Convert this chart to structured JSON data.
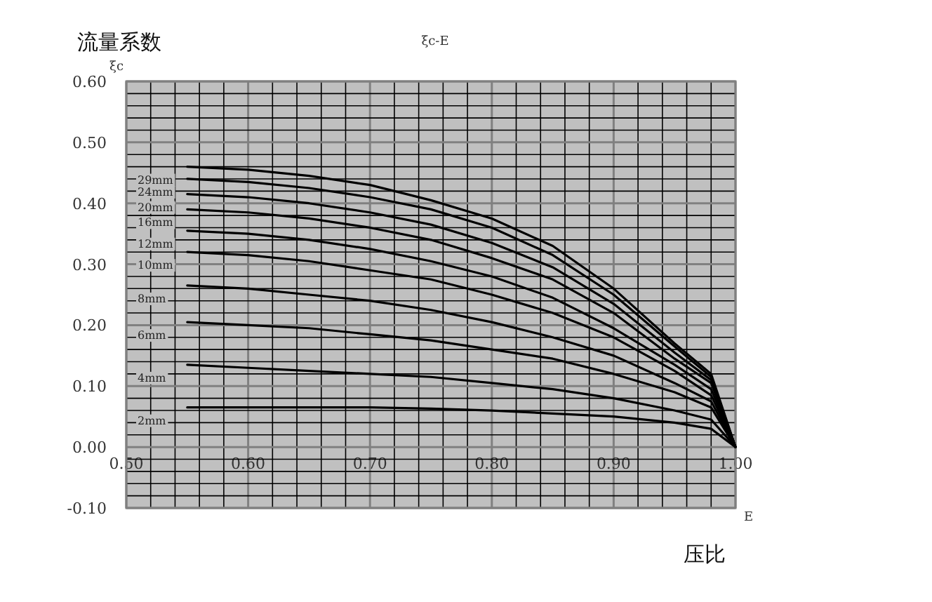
{
  "chart_data": {
    "type": "line",
    "title": "ξc-E",
    "xlabel": "压比",
    "ylabel": "流量系数",
    "annotations": [
      "ξc",
      "E"
    ],
    "x": [
      0.55,
      0.6,
      0.65,
      0.7,
      0.75,
      0.8,
      0.85,
      0.9,
      0.95,
      0.98,
      1.0
    ],
    "xlim": [
      0.5,
      1.0
    ],
    "ylim": [
      -0.1,
      0.6
    ],
    "xticks": [
      {
        "value": 0.5,
        "label": "0.50"
      },
      {
        "value": 0.52,
        "label": null
      },
      {
        "value": 0.54,
        "label": null
      },
      {
        "value": 0.56,
        "label": null
      },
      {
        "value": 0.58,
        "label": null
      },
      {
        "value": 0.6,
        "label": "0.60"
      },
      {
        "value": 0.62,
        "label": null
      },
      {
        "value": 0.64,
        "label": null
      },
      {
        "value": 0.66,
        "label": null
      },
      {
        "value": 0.68,
        "label": null
      },
      {
        "value": 0.7,
        "label": "0.70"
      },
      {
        "value": 0.72,
        "label": null
      },
      {
        "value": 0.74,
        "label": null
      },
      {
        "value": 0.76,
        "label": null
      },
      {
        "value": 0.78,
        "label": null
      },
      {
        "value": 0.8,
        "label": "0.80"
      },
      {
        "value": 0.82,
        "label": null
      },
      {
        "value": 0.84,
        "label": null
      },
      {
        "value": 0.86,
        "label": null
      },
      {
        "value": 0.88,
        "label": null
      },
      {
        "value": 0.9,
        "label": "0.90"
      },
      {
        "value": 0.92,
        "label": null
      },
      {
        "value": 0.94,
        "label": null
      },
      {
        "value": 0.96,
        "label": null
      },
      {
        "value": 0.98,
        "label": null
      },
      {
        "value": 1.0,
        "label": "1.00"
      }
    ],
    "yticks": [
      {
        "value": -0.1,
        "label": "-0.10"
      },
      {
        "value": -0.08,
        "label": null
      },
      {
        "value": -0.06,
        "label": null
      },
      {
        "value": -0.04,
        "label": null
      },
      {
        "value": -0.02,
        "label": null
      },
      {
        "value": 0,
        "label": "0.00"
      },
      {
        "value": 0.02,
        "label": null
      },
      {
        "value": 0.04,
        "label": null
      },
      {
        "value": 0.06,
        "label": null
      },
      {
        "value": 0.08,
        "label": null
      },
      {
        "value": 0.1,
        "label": "0.10"
      },
      {
        "value": 0.12,
        "label": null
      },
      {
        "value": 0.14,
        "label": null
      },
      {
        "value": 0.16,
        "label": null
      },
      {
        "value": 0.18,
        "label": null
      },
      {
        "value": 0.2,
        "label": "0.20"
      },
      {
        "value": 0.22,
        "label": null
      },
      {
        "value": 0.24,
        "label": null
      },
      {
        "value": 0.26,
        "label": null
      },
      {
        "value": 0.28,
        "label": null
      },
      {
        "value": 0.3,
        "label": "0.30"
      },
      {
        "value": 0.32,
        "label": null
      },
      {
        "value": 0.34,
        "label": null
      },
      {
        "value": 0.36,
        "label": null
      },
      {
        "value": 0.38,
        "label": null
      },
      {
        "value": 0.4,
        "label": "0.40"
      },
      {
        "value": 0.42,
        "label": null
      },
      {
        "value": 0.44,
        "label": null
      },
      {
        "value": 0.46,
        "label": null
      },
      {
        "value": 0.48,
        "label": null
      },
      {
        "value": 0.5,
        "label": "0.50"
      },
      {
        "value": 0.52,
        "label": null
      },
      {
        "value": 0.54,
        "label": null
      },
      {
        "value": 0.56,
        "label": null
      },
      {
        "value": 0.58,
        "label": null
      },
      {
        "value": 0.6,
        "label": "0.60"
      }
    ],
    "grid": true,
    "marker": "none",
    "line_style": "solid",
    "series": [
      {
        "name": "29mm",
        "color": "#000000",
        "values": [
          0.46,
          0.455,
          0.445,
          0.43,
          0.405,
          0.375,
          0.33,
          0.26,
          0.17,
          0.12,
          0.0
        ]
      },
      {
        "name": "24mm",
        "color": "#000000",
        "values": [
          0.44,
          0.435,
          0.425,
          0.41,
          0.39,
          0.36,
          0.315,
          0.25,
          0.165,
          0.115,
          0.0
        ]
      },
      {
        "name": "20mm",
        "color": "#000000",
        "values": [
          0.415,
          0.41,
          0.4,
          0.385,
          0.365,
          0.335,
          0.295,
          0.235,
          0.155,
          0.11,
          0.0
        ]
      },
      {
        "name": "16mm",
        "color": "#000000",
        "values": [
          0.39,
          0.385,
          0.375,
          0.36,
          0.34,
          0.31,
          0.275,
          0.22,
          0.145,
          0.105,
          0.0
        ]
      },
      {
        "name": "12mm",
        "color": "#000000",
        "values": [
          0.355,
          0.35,
          0.34,
          0.325,
          0.305,
          0.28,
          0.245,
          0.195,
          0.135,
          0.095,
          0.0
        ]
      },
      {
        "name": "10mm",
        "color": "#000000",
        "values": [
          0.32,
          0.315,
          0.305,
          0.29,
          0.275,
          0.25,
          0.22,
          0.18,
          0.125,
          0.085,
          0.0
        ]
      },
      {
        "name": "8mm",
        "color": "#000000",
        "values": [
          0.265,
          0.26,
          0.25,
          0.24,
          0.225,
          0.205,
          0.18,
          0.15,
          0.105,
          0.075,
          0.0
        ]
      },
      {
        "name": "6mm",
        "color": "#000000",
        "values": [
          0.205,
          0.2,
          0.195,
          0.185,
          0.175,
          0.16,
          0.145,
          0.12,
          0.09,
          0.065,
          0.0
        ]
      },
      {
        "name": "4mm",
        "color": "#000000",
        "values": [
          0.135,
          0.13,
          0.125,
          0.12,
          0.115,
          0.105,
          0.095,
          0.08,
          0.06,
          0.045,
          0.0
        ]
      },
      {
        "name": "2mm",
        "color": "#000000",
        "values": [
          0.065,
          0.065,
          0.065,
          0.065,
          0.063,
          0.06,
          0.055,
          0.05,
          0.04,
          0.03,
          0.0
        ]
      }
    ]
  }
}
